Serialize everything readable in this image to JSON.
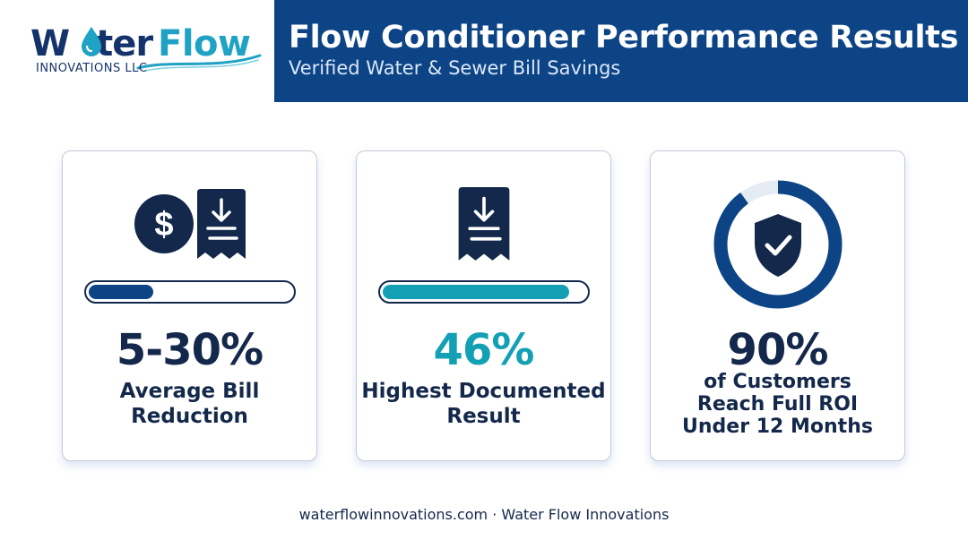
{
  "header": {
    "title": "Flow Conditioner Performance Results",
    "subtitle": "Verified Water & Sewer Bill Savings"
  },
  "logo": {
    "part1": "W",
    "part2": "ter",
    "part3": "Flow",
    "tagline": "INNOVATIONS LLC",
    "icon": "water-drop-icon"
  },
  "cards": [
    {
      "value": "5-30%",
      "label_lines": [
        "Average Bill",
        "Reduction"
      ],
      "progress": 0.32,
      "icons": [
        "dollar-icon",
        "receipt-icon"
      ]
    },
    {
      "value": "46%",
      "label_lines": [
        "Highest Documented",
        "Result"
      ],
      "progress": 0.92,
      "icons": [
        "receipt-icon"
      ]
    },
    {
      "value": "90%",
      "label_lines": [
        "of Customers",
        "Reach Full ROI",
        "Under 12 Months"
      ],
      "ring_progress": 0.9,
      "icons": [
        "shield-check-icon"
      ]
    }
  ],
  "footer": "waterflowinnovations.com · Water Flow Innovations",
  "colors": {
    "navy": "#14284b",
    "header_blue": "#0d4486",
    "bar_navy": "#0d4486",
    "teal": "#14a0b4",
    "ring_track": "#e4ebf3"
  }
}
